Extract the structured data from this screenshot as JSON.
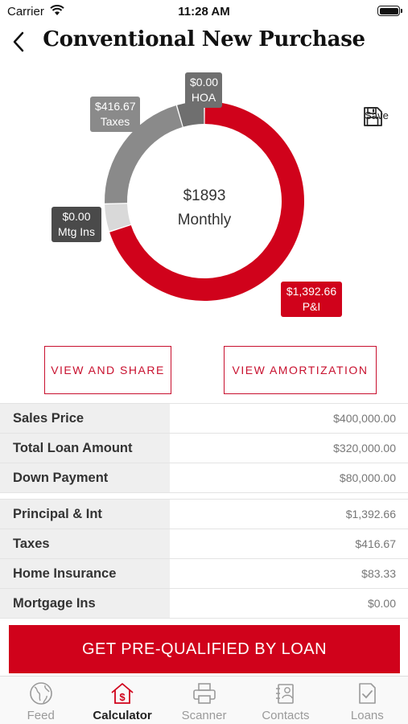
{
  "status_bar": {
    "carrier": "Carrier",
    "time": "11:28 AM"
  },
  "header": {
    "title": "Conventional New Purchase"
  },
  "save": {
    "label": "Save"
  },
  "chart": {
    "center_amount": "$1893",
    "center_label": "Monthly",
    "labels": {
      "hoa": {
        "amount": "$0.00",
        "name": "HOA"
      },
      "taxes": {
        "amount": "$416.67",
        "name": "Taxes"
      },
      "mtg_ins": {
        "amount": "$0.00",
        "name": "Mtg Ins"
      },
      "pi": {
        "amount": "$1,392.66",
        "name": "P&I"
      }
    }
  },
  "chart_data": {
    "type": "pie",
    "categories": [
      "P&I",
      "Mtg Ins",
      "Taxes",
      "HOA"
    ],
    "values": [
      1392.66,
      0,
      416.67,
      0
    ],
    "title": "",
    "center_text": "$1893 Monthly",
    "colors": [
      "#d0021b",
      "#d9d9d9",
      "#8a8a8a",
      "#6f6f6f"
    ]
  },
  "buttons": {
    "view_share": "VIEW AND SHARE",
    "view_amortization": "VIEW AMORTIZATION"
  },
  "loan_table": [
    {
      "label": "Sales Price",
      "value": "$400,000.00"
    },
    {
      "label": "Total Loan Amount",
      "value": "$320,000.00"
    },
    {
      "label": "Down Payment",
      "value": "$80,000.00"
    }
  ],
  "payment_table": [
    {
      "label": "Principal & Int",
      "value": "$1,392.66"
    },
    {
      "label": "Taxes",
      "value": "$416.67"
    },
    {
      "label": "Home Insurance",
      "value": "$83.33"
    },
    {
      "label": "Mortgage Ins",
      "value": "$0.00"
    }
  ],
  "cta": {
    "label": "GET PRE-QUALIFIED BY LOAN"
  },
  "tabs": [
    {
      "label": "Feed",
      "icon": "globe-icon"
    },
    {
      "label": "Calculator",
      "icon": "house-dollar-icon"
    },
    {
      "label": "Scanner",
      "icon": "printer-icon"
    },
    {
      "label": "Contacts",
      "icon": "contacts-icon"
    },
    {
      "label": "Loans",
      "icon": "document-check-icon"
    }
  ],
  "colors": {
    "accent": "#d0021b"
  }
}
